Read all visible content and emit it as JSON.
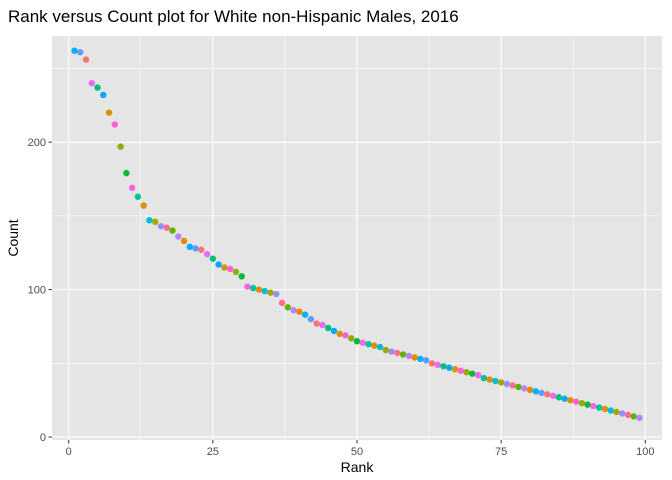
{
  "chart_data": {
    "type": "scatter",
    "title": "Rank versus Count plot for White non-Hispanic Males, 2016",
    "xlabel": "Rank",
    "ylabel": "Count",
    "xlim": [
      -2.9,
      102.9
    ],
    "ylim": [
      -2.0,
      272.0
    ],
    "x_ticks": [
      0,
      25,
      50,
      75,
      100
    ],
    "x_tick_labels": [
      "0",
      "25",
      "50",
      "75",
      "100"
    ],
    "y_ticks": [
      0,
      100,
      200
    ],
    "y_tick_labels": [
      "0",
      "100",
      "200"
    ],
    "grid": true,
    "legend": "none",
    "panel_background": "#e5e5e5",
    "gridline_color": "#ffffff",
    "point_colors": [
      "#00B0F6",
      "#619CFF",
      "#F8766D",
      "#E76BF3",
      "#00BF7D",
      "#00A9FF",
      "#D39200",
      "#FD61D1",
      "#93AA00",
      "#00BA38",
      "#F564E3",
      "#00C19F",
      "#DB8E00",
      "#00BCD8",
      "#A3A500",
      "#9590FF",
      "#FF6C91",
      "#5EB300",
      "#B983FF",
      "#E58700"
    ],
    "x": [
      1,
      2,
      3,
      4,
      5,
      6,
      7,
      8,
      9,
      10,
      11,
      12,
      13,
      14,
      15,
      16,
      17,
      18,
      19,
      20,
      21,
      22,
      23,
      24,
      25,
      26,
      27,
      28,
      29,
      30,
      31,
      32,
      33,
      34,
      35,
      36,
      37,
      38,
      39,
      40,
      41,
      42,
      43,
      44,
      45,
      46,
      47,
      48,
      49,
      50,
      51,
      52,
      53,
      54,
      55,
      56,
      57,
      58,
      59,
      60,
      61,
      62,
      63,
      64,
      65,
      66,
      67,
      68,
      69,
      70,
      71,
      72,
      73,
      74,
      75,
      76,
      77,
      78,
      79,
      80,
      81,
      82,
      83,
      84,
      85,
      86,
      87,
      88,
      89,
      90,
      91,
      92,
      93,
      94,
      95,
      96,
      97,
      98,
      99
    ],
    "y": [
      262,
      261,
      256,
      240,
      237,
      232,
      220,
      212,
      197,
      179,
      169,
      163,
      157,
      147,
      146,
      143,
      142,
      140,
      136,
      133,
      129,
      128,
      127,
      124,
      121,
      117,
      115,
      114,
      112,
      109,
      102,
      101,
      100,
      99,
      98,
      97,
      91,
      88,
      86,
      85,
      83,
      80,
      77,
      76,
      74,
      72,
      70,
      69,
      67,
      65,
      64,
      63,
      62,
      61,
      59,
      58,
      57,
      56,
      55,
      54,
      53,
      52,
      50,
      49,
      48,
      47,
      46,
      45,
      44,
      43,
      42,
      40,
      39,
      38,
      37,
      36,
      35,
      34,
      33,
      32,
      31,
      30,
      29,
      28,
      27,
      26,
      25,
      24,
      23,
      22,
      21,
      20,
      19,
      18,
      17,
      16,
      15,
      14,
      13
    ]
  }
}
